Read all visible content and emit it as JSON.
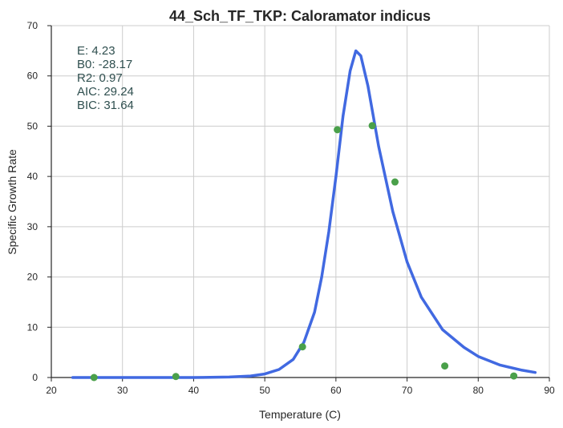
{
  "chart_data": {
    "type": "scatter",
    "title": "44_Sch_TF_TKP: Caloramator indicus",
    "xlabel": "Temperature (C)",
    "ylabel": "Specific Growth Rate",
    "xlim": [
      20,
      90
    ],
    "ylim": [
      0,
      70
    ],
    "xticks": [
      20,
      30,
      40,
      50,
      60,
      70,
      80,
      90
    ],
    "yticks": [
      0,
      10,
      20,
      30,
      40,
      50,
      60,
      70
    ],
    "grid": true,
    "series": [
      {
        "kind": "points",
        "color": "#4aa04a",
        "points": [
          {
            "x": 26.0,
            "y": 0.0
          },
          {
            "x": 37.5,
            "y": 0.2
          },
          {
            "x": 55.3,
            "y": 6.1
          },
          {
            "x": 60.2,
            "y": 49.3
          },
          {
            "x": 65.1,
            "y": 50.1
          },
          {
            "x": 68.3,
            "y": 38.9
          },
          {
            "x": 75.3,
            "y": 2.3
          },
          {
            "x": 85.0,
            "y": 0.3
          }
        ]
      },
      {
        "kind": "line",
        "color": "#4169e1",
        "points": [
          {
            "x": 23.0,
            "y": 0.0
          },
          {
            "x": 40.0,
            "y": 0.0
          },
          {
            "x": 45.0,
            "y": 0.1
          },
          {
            "x": 48.0,
            "y": 0.3
          },
          {
            "x": 50.0,
            "y": 0.7
          },
          {
            "x": 52.0,
            "y": 1.6
          },
          {
            "x": 54.0,
            "y": 3.6
          },
          {
            "x": 55.5,
            "y": 7.0
          },
          {
            "x": 57.0,
            "y": 13.0
          },
          {
            "x": 58.0,
            "y": 20.0
          },
          {
            "x": 59.0,
            "y": 29.0
          },
          {
            "x": 60.0,
            "y": 40.0
          },
          {
            "x": 61.0,
            "y": 52.0
          },
          {
            "x": 62.0,
            "y": 61.0
          },
          {
            "x": 62.8,
            "y": 65.0
          },
          {
            "x": 63.5,
            "y": 64.0
          },
          {
            "x": 64.5,
            "y": 58.0
          },
          {
            "x": 66.0,
            "y": 46.0
          },
          {
            "x": 68.0,
            "y": 33.0
          },
          {
            "x": 70.0,
            "y": 23.0
          },
          {
            "x": 72.0,
            "y": 16.0
          },
          {
            "x": 75.0,
            "y": 9.5
          },
          {
            "x": 78.0,
            "y": 6.0
          },
          {
            "x": 80.0,
            "y": 4.2
          },
          {
            "x": 83.0,
            "y": 2.5
          },
          {
            "x": 86.0,
            "y": 1.5
          },
          {
            "x": 88.0,
            "y": 1.0
          }
        ]
      }
    ],
    "annotations": [
      "E:  4.23",
      "B0:  -28.17",
      "R2:  0.97",
      "AIC: 29.24",
      "BIC: 31.64"
    ]
  }
}
